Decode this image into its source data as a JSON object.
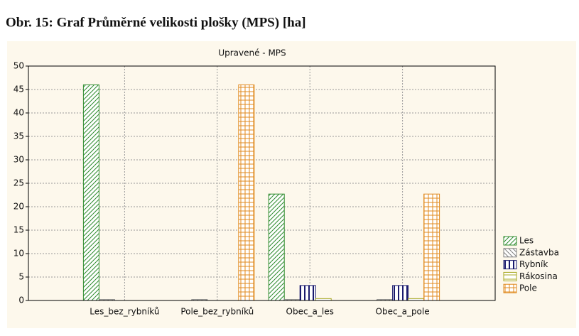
{
  "heading": "Obr. 15: Graf Průměrné velikosti plošky (MPS) [ha]",
  "chart_data": {
    "type": "bar",
    "title": "Upravené - MPS",
    "categories": [
      "Les_bez_rybníků",
      "Pole_bez_rybníků",
      "Obec_a_les",
      "Obec_a_pole"
    ],
    "series": [
      {
        "name": "Les",
        "color": "#2e8b2e",
        "hatch": "diagonal",
        "values": [
          46,
          0,
          22.7,
          0
        ]
      },
      {
        "name": "Zástavba",
        "color": "#808080",
        "hatch": "diagonal-reverse",
        "values": [
          0.2,
          0.2,
          0.2,
          0.2
        ]
      },
      {
        "name": "Rybník",
        "color": "#1a1a6e",
        "hatch": "vertical",
        "values": [
          0,
          0,
          3.2,
          3.2
        ]
      },
      {
        "name": "Rákosina",
        "color": "#a8a820",
        "hatch": "horizontal",
        "values": [
          0,
          0,
          0.4,
          0.4
        ]
      },
      {
        "name": "Pole",
        "color": "#e08a1e",
        "hatch": "grid",
        "values": [
          0,
          46,
          0,
          22.7
        ]
      }
    ],
    "ylim": [
      0,
      50
    ],
    "yticks": [
      0,
      5,
      10,
      15,
      20,
      25,
      30,
      35,
      40,
      45,
      50
    ],
    "grid": true,
    "legend": "bottom-right"
  }
}
